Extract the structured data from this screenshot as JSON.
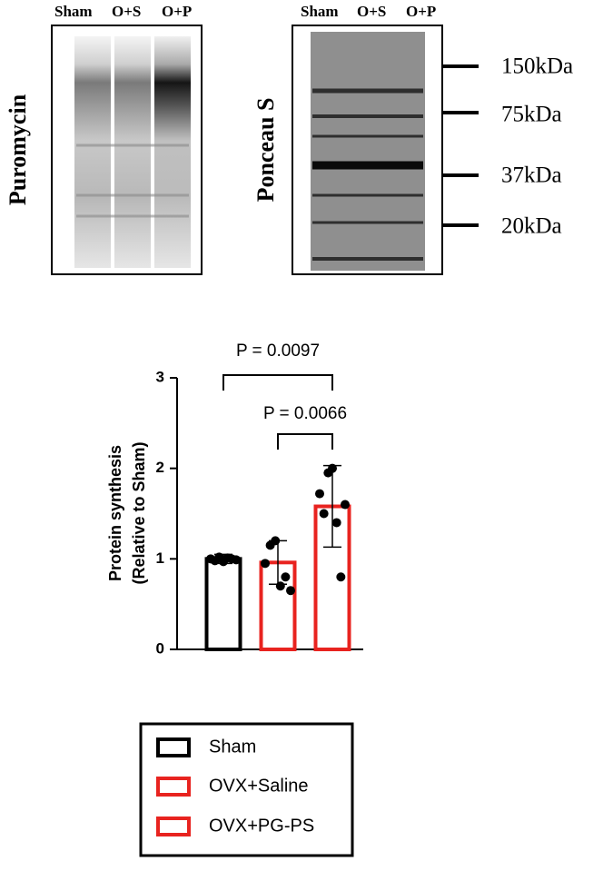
{
  "chart_data": {
    "type": "bar",
    "blots": [
      {
        "label": "Puromycin",
        "lanes": [
          "Sham",
          "O+S",
          "O+P"
        ]
      },
      {
        "label": "Ponceau S",
        "lanes": [
          "Sham",
          "O+S",
          "O+P"
        ],
        "markers": [
          "150kDa",
          "75kDa",
          "37kDa",
          "20kDa"
        ]
      }
    ],
    "ylabel": [
      "Protein synthesis",
      "(Relative to Sham)"
    ],
    "categories": [
      null
    ],
    "series": [
      {
        "name": "Sham",
        "color": "#000000",
        "values": [
          1.0
        ],
        "errors": [
          0.05
        ],
        "points": [
          1.0,
          0.98,
          1.02,
          0.97,
          1.01,
          1.0,
          0.99
        ]
      },
      {
        "name": "OVX+Saline",
        "color": "#e8231f",
        "values": [
          0.96
        ],
        "errors": [
          0.24
        ],
        "points": [
          0.95,
          1.15,
          1.2,
          0.7,
          0.8,
          0.65
        ]
      },
      {
        "name": "OVX+PG-PS",
        "color": "#e8231f",
        "values": [
          1.58
        ],
        "errors": [
          0.45
        ],
        "points": [
          1.72,
          1.5,
          1.95,
          2.0,
          1.4,
          0.8,
          1.6
        ]
      }
    ],
    "annotations": [
      "P = 0.0097",
      "P = 0.0066"
    ],
    "ylim": [
      0,
      3
    ],
    "yticks": [
      0,
      1,
      2,
      3
    ],
    "grid": false
  }
}
